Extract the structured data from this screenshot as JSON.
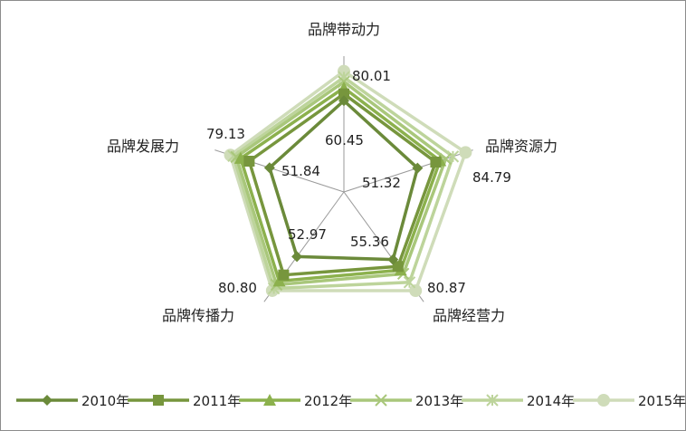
{
  "chart_data": {
    "type": "radar",
    "axes": [
      "品牌带动力",
      "品牌资源力",
      "品牌经营力",
      "品牌传播力",
      "品牌发展力"
    ],
    "rmax": 90,
    "series": [
      {
        "name": "2010年",
        "values": [
          60.45,
          51.32,
          55.36,
          52.97,
          51.84
        ],
        "color": "#6b8a3a",
        "marker": "diamond"
      },
      {
        "name": "2011年",
        "values": [
          65,
          64,
          61,
          68,
          66
        ],
        "color": "#77963d",
        "marker": "square"
      },
      {
        "name": "2012年",
        "values": [
          69,
          67,
          64,
          73,
          72
        ],
        "color": "#8cb14d",
        "marker": "triangle"
      },
      {
        "name": "2013年",
        "values": [
          73,
          71,
          67,
          76,
          75
        ],
        "color": "#a9c77b",
        "marker": "x"
      },
      {
        "name": "2014年",
        "values": [
          76,
          76,
          74,
          79,
          77
        ],
        "color": "#bdd49b",
        "marker": "star"
      },
      {
        "name": "2015年",
        "values": [
          80.01,
          84.79,
          80.87,
          80.8,
          79.13
        ],
        "color": "#cfdcb9",
        "marker": "circle"
      }
    ],
    "data_labels": [
      {
        "text": "80.01"
      },
      {
        "text": "60.45"
      },
      {
        "text": "84.79"
      },
      {
        "text": "51.32"
      },
      {
        "text": "80.87"
      },
      {
        "text": "55.36"
      },
      {
        "text": "80.80"
      },
      {
        "text": "52.97"
      },
      {
        "text": "79.13"
      },
      {
        "text": "51.84"
      }
    ],
    "legend_position": "bottom"
  }
}
